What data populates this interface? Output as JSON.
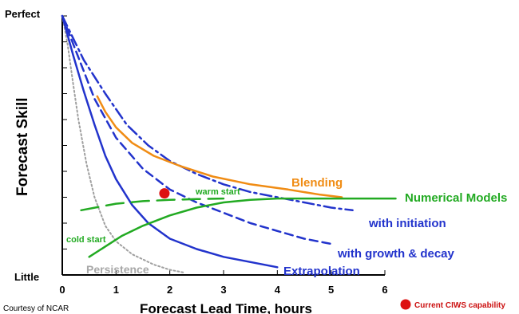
{
  "chart_data": {
    "type": "line",
    "xlabel": "Forecast Lead Time, hours",
    "ylabel": "Forecast Skill",
    "xlim": [
      0,
      6
    ],
    "ylim": [
      0,
      1
    ],
    "x_ticks": [
      "0",
      "1",
      "2",
      "3",
      "4",
      "5",
      "6"
    ],
    "y_top_label": "Perfect",
    "y_bottom_label": "Little",
    "grid": false,
    "series": [
      {
        "name": "Persistence",
        "color": "#a0a0a0",
        "style": "dotted",
        "points": [
          [
            0,
            1.0
          ],
          [
            0.1,
            0.89
          ],
          [
            0.2,
            0.74
          ],
          [
            0.3,
            0.6
          ],
          [
            0.45,
            0.43
          ],
          [
            0.6,
            0.3
          ],
          [
            0.8,
            0.19
          ],
          [
            1.0,
            0.13
          ],
          [
            1.3,
            0.08
          ],
          [
            1.7,
            0.04
          ],
          [
            2.0,
            0.02
          ],
          [
            2.25,
            0.01
          ]
        ]
      },
      {
        "name": "Extrapolation",
        "color": "#2233cc",
        "style": "solid",
        "points": [
          [
            0,
            1.0
          ],
          [
            0.2,
            0.85
          ],
          [
            0.4,
            0.71
          ],
          [
            0.6,
            0.58
          ],
          [
            0.8,
            0.46
          ],
          [
            1.0,
            0.37
          ],
          [
            1.3,
            0.27
          ],
          [
            1.6,
            0.2
          ],
          [
            2.0,
            0.14
          ],
          [
            2.5,
            0.1
          ],
          [
            3.0,
            0.07
          ],
          [
            3.5,
            0.05
          ],
          [
            4.0,
            0.03
          ]
        ]
      },
      {
        "name": "with growth & decay",
        "color": "#2233cc",
        "style": "dashed",
        "points": [
          [
            0,
            1.0
          ],
          [
            0.3,
            0.84
          ],
          [
            0.6,
            0.68
          ],
          [
            1.0,
            0.53
          ],
          [
            1.5,
            0.41
          ],
          [
            2.0,
            0.33
          ],
          [
            2.5,
            0.28
          ],
          [
            3.0,
            0.24
          ],
          [
            3.5,
            0.2
          ],
          [
            4.0,
            0.17
          ],
          [
            4.5,
            0.14
          ],
          [
            5.0,
            0.12
          ]
        ]
      },
      {
        "name": "with initiation",
        "color": "#2233cc",
        "style": "dash-dot",
        "points": [
          [
            0,
            1.0
          ],
          [
            0.4,
            0.83
          ],
          [
            0.8,
            0.7
          ],
          [
            1.2,
            0.58
          ],
          [
            1.6,
            0.5
          ],
          [
            2.0,
            0.44
          ],
          [
            2.5,
            0.39
          ],
          [
            3.0,
            0.35
          ],
          [
            3.5,
            0.32
          ],
          [
            4.0,
            0.3
          ],
          [
            4.5,
            0.28
          ],
          [
            5.0,
            0.26
          ],
          [
            5.4,
            0.25
          ]
        ]
      },
      {
        "name": "Blending",
        "color": "#f08c14",
        "style": "solid",
        "points": [
          [
            0.65,
            0.69
          ],
          [
            0.8,
            0.63
          ],
          [
            1.0,
            0.57
          ],
          [
            1.3,
            0.51
          ],
          [
            1.7,
            0.46
          ],
          [
            2.2,
            0.42
          ],
          [
            2.8,
            0.38
          ],
          [
            3.5,
            0.35
          ],
          [
            4.2,
            0.33
          ],
          [
            4.8,
            0.31
          ],
          [
            5.2,
            0.3
          ]
        ]
      },
      {
        "name": "Numerical Models",
        "color": "#22aa22",
        "style": "solid",
        "points": [
          [
            0.5,
            0.07
          ],
          [
            0.8,
            0.11
          ],
          [
            1.1,
            0.15
          ],
          [
            1.5,
            0.19
          ],
          [
            2.0,
            0.23
          ],
          [
            2.5,
            0.26
          ],
          [
            3.0,
            0.28
          ],
          [
            3.5,
            0.29
          ],
          [
            4.0,
            0.295
          ],
          [
            5.0,
            0.295
          ],
          [
            6.2,
            0.295
          ]
        ]
      },
      {
        "name": "warm start",
        "color": "#22aa22",
        "style": "long-dash",
        "points": [
          [
            0.35,
            0.25
          ],
          [
            1.0,
            0.275
          ],
          [
            1.5,
            0.285
          ],
          [
            2.0,
            0.29
          ],
          [
            2.5,
            0.293
          ],
          [
            3.0,
            0.295
          ]
        ]
      }
    ],
    "annotations": [
      {
        "text": "warm start",
        "color": "#22aa22"
      },
      {
        "text": "cold start",
        "color": "#22aa22"
      }
    ],
    "current_point": {
      "x": 1.9,
      "y": 0.315,
      "color": "#dd1111"
    },
    "legend": "bottom-right",
    "legend_text": "Current CIWS capability",
    "credit": "Courtesy of NCAR"
  }
}
